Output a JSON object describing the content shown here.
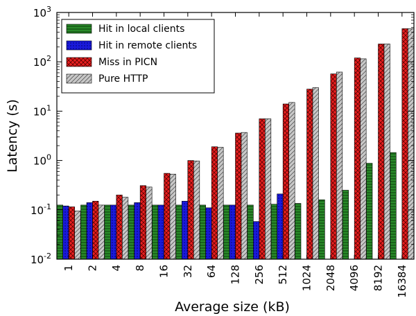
{
  "chart_data": {
    "type": "bar",
    "scale": "log",
    "xlabel": "Average size (kB)",
    "ylabel": "Latency (s)",
    "ylim": [
      0.01,
      1000
    ],
    "y_ticks": [
      {
        "value": 0.01,
        "base": "10",
        "exp": "-2"
      },
      {
        "value": 0.1,
        "base": "10",
        "exp": "-1"
      },
      {
        "value": 1,
        "base": "10",
        "exp": "0"
      },
      {
        "value": 10,
        "base": "10",
        "exp": "1"
      },
      {
        "value": 100,
        "base": "10",
        "exp": "2"
      },
      {
        "value": 1000,
        "base": "10",
        "exp": "3"
      }
    ],
    "categories": [
      "1",
      "2",
      "4",
      "8",
      "16",
      "32",
      "64",
      "128",
      "256",
      "512",
      "1024",
      "2048",
      "4096",
      "8192",
      "16384"
    ],
    "legend_position": "upper-left",
    "series": [
      {
        "name": "Hit in local clients",
        "color": "#2a8a2a",
        "pattern": "horizontal-lines",
        "values": [
          0.125,
          0.125,
          0.125,
          0.125,
          0.125,
          0.125,
          0.125,
          0.125,
          0.125,
          0.13,
          0.135,
          0.16,
          0.25,
          0.88,
          1.45
        ]
      },
      {
        "name": "Hit in remote clients",
        "color": "#1a1adb",
        "pattern": "dots",
        "values": [
          0.12,
          0.14,
          0.125,
          0.14,
          0.125,
          0.15,
          0.11,
          0.125,
          0.058,
          0.21,
          null,
          null,
          null,
          null,
          null
        ]
      },
      {
        "name": "Miss in PICN",
        "color": "#e82020",
        "pattern": "crosshatch",
        "values": [
          0.115,
          0.15,
          0.2,
          0.31,
          0.55,
          1.0,
          1.9,
          3.6,
          7.0,
          14.0,
          28.0,
          57.0,
          120.0,
          230.0,
          470.0
        ]
      },
      {
        "name": "Pure HTTP",
        "color": "#c8c8c8",
        "pattern": "diagonal-lines",
        "values": [
          0.095,
          0.125,
          0.18,
          0.29,
          0.53,
          0.98,
          1.85,
          3.7,
          7.0,
          15.0,
          30.0,
          62.0,
          115.0,
          230.0,
          470.0
        ]
      }
    ]
  }
}
